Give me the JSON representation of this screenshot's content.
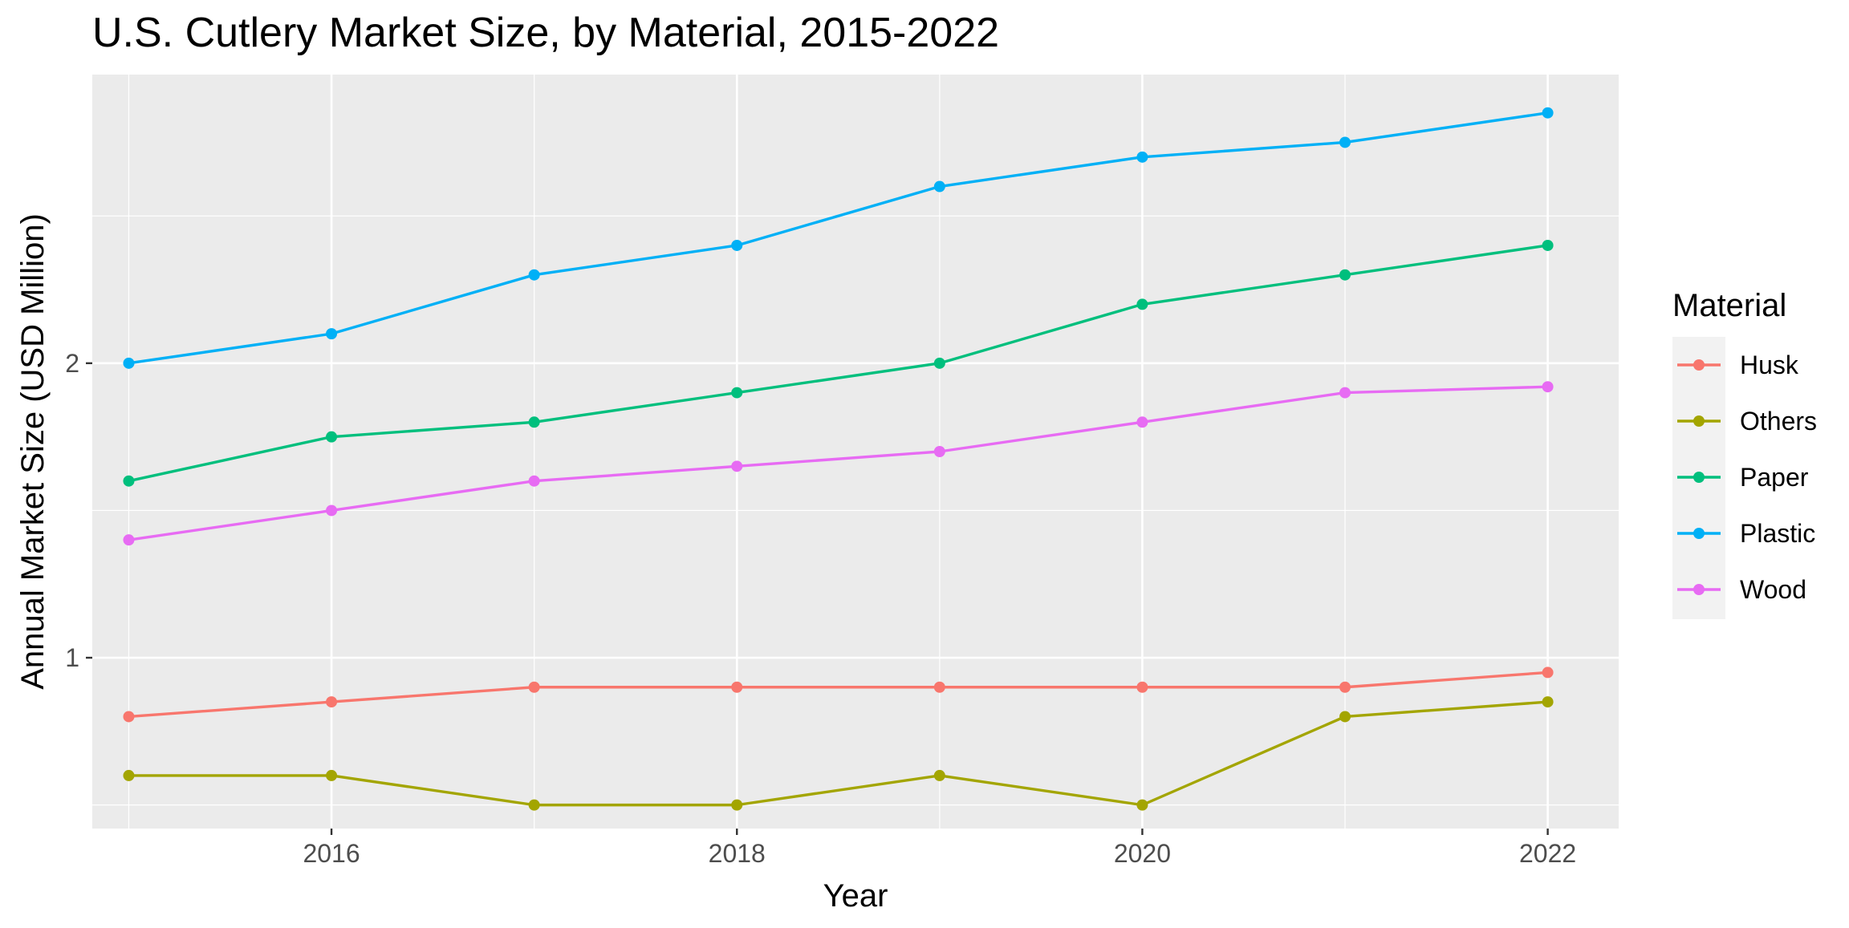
{
  "chart_data": {
    "type": "line",
    "title": "U.S. Cutlery Market Size, by Material, 2015-2022",
    "xlabel": "Year",
    "ylabel": "Annual Market Size (USD Million)",
    "x": [
      2015,
      2016,
      2017,
      2018,
      2019,
      2020,
      2021,
      2022
    ],
    "xlim": [
      2014.82,
      2022.35
    ],
    "ylim": [
      0.42,
      2.98
    ],
    "x_ticks": [
      2016,
      2018,
      2020,
      2022
    ],
    "y_ticks": [
      1,
      2
    ],
    "grid": true,
    "legend": {
      "title": "Material",
      "position": "right"
    },
    "series": [
      {
        "name": "Husk",
        "color": "#F8766D",
        "values": [
          0.8,
          0.85,
          0.9,
          0.9,
          0.9,
          0.9,
          0.9,
          0.95
        ]
      },
      {
        "name": "Others",
        "color": "#A3A500",
        "values": [
          0.6,
          0.6,
          0.5,
          0.5,
          0.6,
          0.5,
          0.8,
          0.85
        ]
      },
      {
        "name": "Paper",
        "color": "#00BF7D",
        "values": [
          1.6,
          1.75,
          1.8,
          1.9,
          2.0,
          2.2,
          2.3,
          2.4
        ]
      },
      {
        "name": "Plastic",
        "color": "#00B0F6",
        "values": [
          2.0,
          2.1,
          2.3,
          2.4,
          2.6,
          2.7,
          2.75,
          2.85
        ]
      },
      {
        "name": "Wood",
        "color": "#E76BF3",
        "values": [
          1.4,
          1.5,
          1.6,
          1.65,
          1.7,
          1.8,
          1.9,
          1.92
        ]
      }
    ]
  }
}
